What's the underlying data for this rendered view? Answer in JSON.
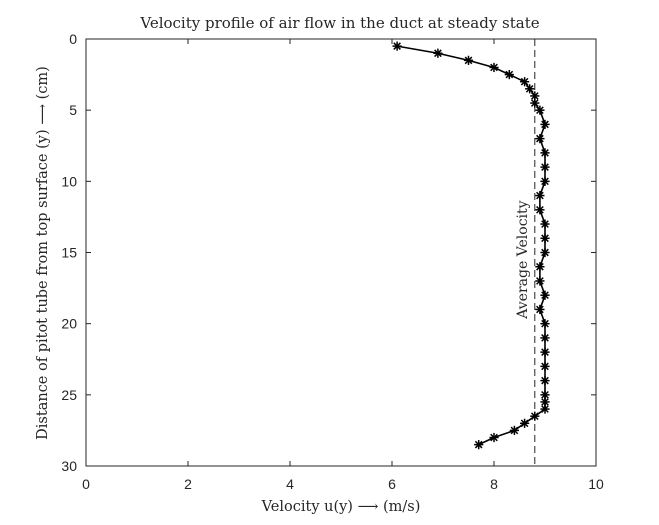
{
  "chart_data": {
    "type": "line",
    "title": "Velocity profile of air flow in the duct at steady state",
    "xlabel": "Velocity u(y) ⟶ (m/s)",
    "ylabel": "Distance of pitot tube from top surface (y) ⟶ (cm)",
    "xlim": [
      0,
      10
    ],
    "ylim": [
      0,
      30
    ],
    "y_inverted": true,
    "grid": false,
    "x_ticks": [
      0,
      2,
      4,
      6,
      8,
      10
    ],
    "y_ticks": [
      0,
      5,
      10,
      15,
      20,
      25,
      30
    ],
    "x_tick_labels": [
      "0",
      "2",
      "4",
      "6",
      "8",
      "10"
    ],
    "y_tick_labels": [
      "0",
      "5",
      "10",
      "15",
      "20",
      "25",
      "30"
    ],
    "series": [
      {
        "marker": "asterisk",
        "color": "#000000",
        "points": [
          {
            "u": 6.1,
            "y": 0.5
          },
          {
            "u": 6.9,
            "y": 1.0
          },
          {
            "u": 7.5,
            "y": 1.5
          },
          {
            "u": 8.0,
            "y": 2.0
          },
          {
            "u": 8.3,
            "y": 2.5
          },
          {
            "u": 8.6,
            "y": 3.0
          },
          {
            "u": 8.7,
            "y": 3.5
          },
          {
            "u": 8.8,
            "y": 4.0
          },
          {
            "u": 8.8,
            "y": 4.5
          },
          {
            "u": 8.9,
            "y": 5.0
          },
          {
            "u": 9.0,
            "y": 6.0
          },
          {
            "u": 8.9,
            "y": 7.0
          },
          {
            "u": 9.0,
            "y": 8.0
          },
          {
            "u": 9.0,
            "y": 9.0
          },
          {
            "u": 9.0,
            "y": 10.0
          },
          {
            "u": 8.9,
            "y": 11.0
          },
          {
            "u": 8.9,
            "y": 12.0
          },
          {
            "u": 9.0,
            "y": 13.0
          },
          {
            "u": 9.0,
            "y": 14.0
          },
          {
            "u": 9.0,
            "y": 15.0
          },
          {
            "u": 8.9,
            "y": 16.0
          },
          {
            "u": 8.9,
            "y": 17.0
          },
          {
            "u": 9.0,
            "y": 18.0
          },
          {
            "u": 8.9,
            "y": 19.0
          },
          {
            "u": 9.0,
            "y": 20.0
          },
          {
            "u": 9.0,
            "y": 21.0
          },
          {
            "u": 9.0,
            "y": 22.0
          },
          {
            "u": 9.0,
            "y": 23.0
          },
          {
            "u": 9.0,
            "y": 24.0
          },
          {
            "u": 9.0,
            "y": 25.0
          },
          {
            "u": 9.0,
            "y": 25.5
          },
          {
            "u": 9.0,
            "y": 26.0
          },
          {
            "u": 8.8,
            "y": 26.5
          },
          {
            "u": 8.6,
            "y": 27.0
          },
          {
            "u": 8.4,
            "y": 27.5
          },
          {
            "u": 8.0,
            "y": 28.0
          },
          {
            "u": 7.7,
            "y": 28.5
          }
        ]
      }
    ],
    "reference_line": {
      "orientation": "vertical",
      "x": 8.8,
      "style": "dashed",
      "label": "Average Velocity",
      "label_y": 15.5
    }
  }
}
